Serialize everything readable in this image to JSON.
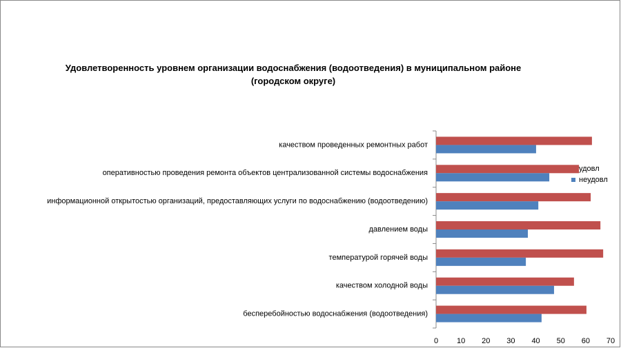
{
  "chart_data": {
    "type": "bar",
    "orientation": "horizontal",
    "title": "Удовлетворенность уровнем организации водоснабжения (водоотведения) в муниципальном районе (городском округе)",
    "categories": [
      "качеством проведенных ремонтных работ",
      "оперативностью проведения ремонта объектов централизованной системы водоснабжения",
      "информационной открытостью организаций, предоставляющих услуги по водоснабжению (водоотведению)",
      "давлением воды",
      "температурой горячей воды",
      "качеством холодной воды",
      "бесперебойностью водоснабжения (водоотведения)"
    ],
    "series": [
      {
        "name": "удовл",
        "color": "#c0504d",
        "values": [
          62.5,
          57.3,
          62,
          65.9,
          67,
          55.3,
          60.3
        ]
      },
      {
        "name": "неудовл",
        "color": "#4f81bd",
        "values": [
          40.1,
          45.4,
          41,
          36.8,
          36,
          47.3,
          42.3
        ]
      }
    ],
    "xlim": [
      0,
      70
    ],
    "xticks": [
      0,
      10,
      20,
      30,
      40,
      50,
      60,
      70
    ],
    "legend": "right"
  }
}
